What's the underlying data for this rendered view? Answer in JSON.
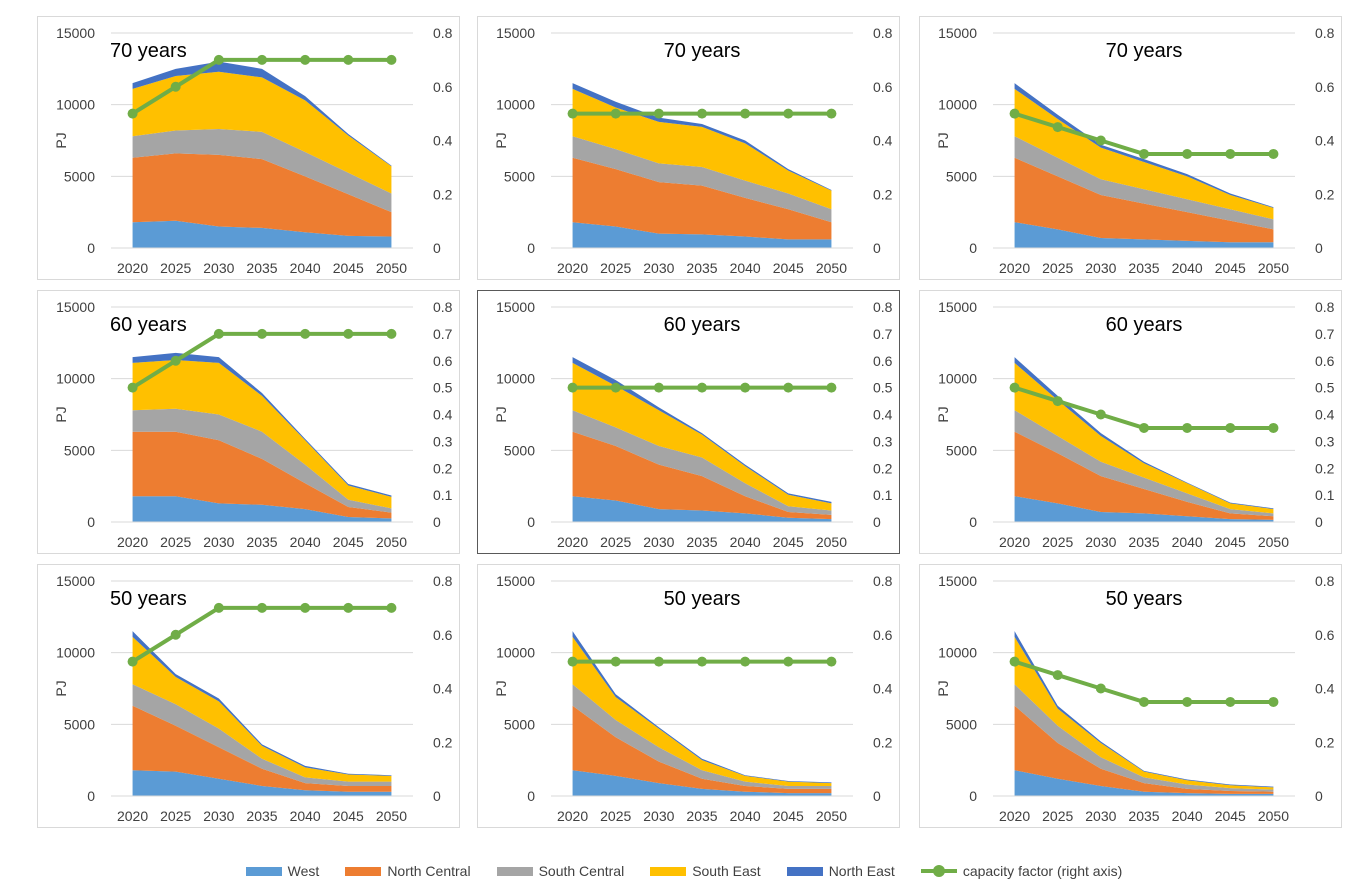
{
  "legend": [
    {
      "label": "West",
      "color": "#5b9bd5",
      "kind": "area"
    },
    {
      "label": "North Central",
      "color": "#ed7d31",
      "kind": "area"
    },
    {
      "label": "South Central",
      "color": "#a5a5a5",
      "kind": "area"
    },
    {
      "label": "South East",
      "color": "#ffc000",
      "kind": "area"
    },
    {
      "label": "North East",
      "color": "#4472c4",
      "kind": "area"
    },
    {
      "label": "capacity factor (right axis)",
      "color": "#70ad47",
      "kind": "line"
    }
  ],
  "chart_data": [
    {
      "type": "area",
      "title": "70 years",
      "title_pos": "left",
      "ylabel": "PJ",
      "x": [
        "2020",
        "2025",
        "2030",
        "2035",
        "2040",
        "2045",
        "2050"
      ],
      "ylim": [
        0,
        15000
      ],
      "yticks": [
        "0",
        "5000",
        "10000",
        "15000"
      ],
      "y2lim": [
        0,
        0.8
      ],
      "y2ticks": [
        "0",
        "0.2",
        "0.4",
        "0.6",
        "0.8"
      ],
      "selected": false,
      "series": [
        {
          "name": "West",
          "values": [
            1800,
            1900,
            1500,
            1400,
            1100,
            850,
            800
          ]
        },
        {
          "name": "North Central",
          "values": [
            4500,
            4700,
            5000,
            4800,
            3900,
            2900,
            1700
          ]
        },
        {
          "name": "South Central",
          "values": [
            1500,
            1600,
            1800,
            1900,
            1700,
            1500,
            1300
          ]
        },
        {
          "name": "South East",
          "values": [
            3300,
            3800,
            4000,
            3800,
            3600,
            2600,
            1900
          ]
        },
        {
          "name": "North East",
          "values": [
            400,
            500,
            700,
            600,
            300,
            100,
            50
          ]
        }
      ],
      "line": {
        "name": "capacity factor (right axis)",
        "values": [
          0.5,
          0.6,
          0.7,
          0.7,
          0.7,
          0.7,
          0.7
        ]
      }
    },
    {
      "type": "area",
      "title": "70 years",
      "title_pos": "center",
      "ylabel": "PJ",
      "x": [
        "2020",
        "2025",
        "2030",
        "2035",
        "2040",
        "2045",
        "2050"
      ],
      "ylim": [
        0,
        15000
      ],
      "yticks": [
        "0",
        "5000",
        "10000",
        "15000"
      ],
      "y2lim": [
        0,
        0.8
      ],
      "y2ticks": [
        "0",
        "0.2",
        "0.4",
        "0.6",
        "0.8"
      ],
      "selected": false,
      "series": [
        {
          "name": "West",
          "values": [
            1800,
            1500,
            1000,
            950,
            800,
            600,
            600
          ]
        },
        {
          "name": "North Central",
          "values": [
            4500,
            4000,
            3600,
            3400,
            2700,
            2100,
            1200
          ]
        },
        {
          "name": "South Central",
          "values": [
            1500,
            1400,
            1300,
            1300,
            1200,
            1100,
            900
          ]
        },
        {
          "name": "South East",
          "values": [
            3300,
            2900,
            2900,
            2800,
            2600,
            1600,
            1300
          ]
        },
        {
          "name": "North East",
          "values": [
            400,
            400,
            300,
            200,
            200,
            100,
            50
          ]
        }
      ],
      "line": {
        "name": "capacity factor (right axis)",
        "values": [
          0.5,
          0.5,
          0.5,
          0.5,
          0.5,
          0.5,
          0.5
        ]
      }
    },
    {
      "type": "area",
      "title": "70 years",
      "title_pos": "center",
      "ylabel": "PJ",
      "x": [
        "2020",
        "2025",
        "2030",
        "2035",
        "2040",
        "2045",
        "2050"
      ],
      "ylim": [
        0,
        15000
      ],
      "yticks": [
        "0",
        "5000",
        "10000",
        "15000"
      ],
      "y2lim": [
        0,
        0.8
      ],
      "y2ticks": [
        "0",
        "0.2",
        "0.4",
        "0.6",
        "0.8"
      ],
      "selected": false,
      "series": [
        {
          "name": "West",
          "values": [
            1800,
            1300,
            700,
            600,
            500,
            400,
            400
          ]
        },
        {
          "name": "North Central",
          "values": [
            4500,
            3700,
            3000,
            2500,
            2000,
            1500,
            900
          ]
        },
        {
          "name": "South Central",
          "values": [
            1500,
            1300,
            1100,
            1000,
            900,
            800,
            700
          ]
        },
        {
          "name": "South East",
          "values": [
            3300,
            2700,
            2200,
            1900,
            1600,
            1000,
            800
          ]
        },
        {
          "name": "North East",
          "values": [
            400,
            300,
            200,
            200,
            150,
            100,
            50
          ]
        }
      ],
      "line": {
        "name": "capacity factor (right axis)",
        "values": [
          0.5,
          0.45,
          0.4,
          0.35,
          0.35,
          0.35,
          0.35
        ]
      }
    },
    {
      "type": "area",
      "title": "60 years",
      "title_pos": "left",
      "ylabel": "PJ",
      "x": [
        "2020",
        "2025",
        "2030",
        "2035",
        "2040",
        "2045",
        "2050"
      ],
      "ylim": [
        0,
        15000
      ],
      "yticks": [
        "0",
        "5000",
        "10000",
        "15000"
      ],
      "y2lim": [
        0,
        0.8
      ],
      "y2ticks": [
        "0",
        "0.1",
        "0.2",
        "0.3",
        "0.4",
        "0.5",
        "0.6",
        "0.7",
        "0.8"
      ],
      "selected": false,
      "series": [
        {
          "name": "West",
          "values": [
            1800,
            1800,
            1300,
            1200,
            900,
            350,
            250
          ]
        },
        {
          "name": "North Central",
          "values": [
            4500,
            4500,
            4400,
            3200,
            1800,
            700,
            400
          ]
        },
        {
          "name": "South Central",
          "values": [
            1500,
            1600,
            1800,
            1900,
            1300,
            500,
            300
          ]
        },
        {
          "name": "South East",
          "values": [
            3300,
            3400,
            3600,
            2500,
            1700,
            1000,
            800
          ]
        },
        {
          "name": "North East",
          "values": [
            400,
            500,
            400,
            200,
            100,
            100,
            100
          ]
        }
      ],
      "line": {
        "name": "capacity factor (right axis)",
        "values": [
          0.5,
          0.6,
          0.7,
          0.7,
          0.7,
          0.7,
          0.7
        ]
      }
    },
    {
      "type": "area",
      "title": "60 years",
      "title_pos": "center",
      "ylabel": "PJ",
      "x": [
        "2020",
        "2025",
        "2030",
        "2035",
        "2040",
        "2045",
        "2050"
      ],
      "ylim": [
        0,
        15000
      ],
      "yticks": [
        "0",
        "5000",
        "10000",
        "15000"
      ],
      "y2lim": [
        0,
        0.8
      ],
      "y2ticks": [
        "0",
        "0.1",
        "0.2",
        "0.3",
        "0.4",
        "0.5",
        "0.6",
        "0.7",
        "0.8"
      ],
      "selected": true,
      "series": [
        {
          "name": "West",
          "values": [
            1800,
            1500,
            900,
            800,
            600,
            300,
            200
          ]
        },
        {
          "name": "North Central",
          "values": [
            4500,
            3800,
            3100,
            2400,
            1200,
            400,
            300
          ]
        },
        {
          "name": "South Central",
          "values": [
            1500,
            1300,
            1300,
            1300,
            900,
            400,
            300
          ]
        },
        {
          "name": "South East",
          "values": [
            3300,
            2900,
            2500,
            1600,
            1200,
            800,
            500
          ]
        },
        {
          "name": "North East",
          "values": [
            400,
            400,
            200,
            100,
            100,
            100,
            100
          ]
        }
      ],
      "line": {
        "name": "capacity factor (right axis)",
        "values": [
          0.5,
          0.5,
          0.5,
          0.5,
          0.5,
          0.5,
          0.5
        ]
      }
    },
    {
      "type": "area",
      "title": "60 years",
      "title_pos": "center",
      "ylabel": "PJ",
      "x": [
        "2020",
        "2025",
        "2030",
        "2035",
        "2040",
        "2045",
        "2050"
      ],
      "ylim": [
        0,
        15000
      ],
      "yticks": [
        "0",
        "5000",
        "10000",
        "15000"
      ],
      "y2lim": [
        0,
        0.8
      ],
      "y2ticks": [
        "0",
        "0.1",
        "0.2",
        "0.3",
        "0.4",
        "0.5",
        "0.6",
        "0.7",
        "0.8"
      ],
      "selected": false,
      "series": [
        {
          "name": "West",
          "values": [
            1800,
            1300,
            700,
            600,
            400,
            200,
            150
          ]
        },
        {
          "name": "North Central",
          "values": [
            4500,
            3500,
            2500,
            1700,
            1000,
            400,
            250
          ]
        },
        {
          "name": "South Central",
          "values": [
            1500,
            1200,
            1000,
            800,
            600,
            300,
            200
          ]
        },
        {
          "name": "South East",
          "values": [
            3300,
            2500,
            1800,
            1000,
            700,
            400,
            300
          ]
        },
        {
          "name": "North East",
          "values": [
            400,
            300,
            200,
            100,
            50,
            50,
            50
          ]
        }
      ],
      "line": {
        "name": "capacity factor (right axis)",
        "values": [
          0.5,
          0.45,
          0.4,
          0.35,
          0.35,
          0.35,
          0.35
        ]
      }
    },
    {
      "type": "area",
      "title": "50 years",
      "title_pos": "left",
      "ylabel": "PJ",
      "x": [
        "2020",
        "2025",
        "2030",
        "2035",
        "2040",
        "2045",
        "2050"
      ],
      "ylim": [
        0,
        15000
      ],
      "yticks": [
        "0",
        "5000",
        "10000",
        "15000"
      ],
      "y2lim": [
        0,
        0.8
      ],
      "y2ticks": [
        "0",
        "0.2",
        "0.4",
        "0.6",
        "0.8"
      ],
      "selected": false,
      "series": [
        {
          "name": "West",
          "values": [
            1800,
            1700,
            1200,
            700,
            400,
            300,
            300
          ]
        },
        {
          "name": "North Central",
          "values": [
            4500,
            3200,
            2200,
            1200,
            500,
            400,
            400
          ]
        },
        {
          "name": "South Central",
          "values": [
            1500,
            1500,
            1300,
            700,
            400,
            300,
            300
          ]
        },
        {
          "name": "South East",
          "values": [
            3300,
            1900,
            1900,
            900,
            700,
            500,
            400
          ]
        },
        {
          "name": "North East",
          "values": [
            400,
            200,
            200,
            100,
            100,
            50,
            50
          ]
        }
      ],
      "line": {
        "name": "capacity factor (right axis)",
        "values": [
          0.5,
          0.6,
          0.7,
          0.7,
          0.7,
          0.7,
          0.7
        ]
      }
    },
    {
      "type": "area",
      "title": "50 years",
      "title_pos": "center",
      "ylabel": "PJ",
      "x": [
        "2020",
        "2025",
        "2030",
        "2035",
        "2040",
        "2045",
        "2050"
      ],
      "ylim": [
        0,
        15000
      ],
      "yticks": [
        "0",
        "5000",
        "10000",
        "15000"
      ],
      "y2lim": [
        0,
        0.8
      ],
      "y2ticks": [
        "0",
        "0.2",
        "0.4",
        "0.6",
        "0.8"
      ],
      "selected": false,
      "series": [
        {
          "name": "West",
          "values": [
            1800,
            1400,
            900,
            500,
            300,
            200,
            200
          ]
        },
        {
          "name": "North Central",
          "values": [
            4500,
            2700,
            1500,
            700,
            400,
            300,
            300
          ]
        },
        {
          "name": "South Central",
          "values": [
            1500,
            1200,
            1000,
            600,
            300,
            200,
            200
          ]
        },
        {
          "name": "South East",
          "values": [
            3300,
            1600,
            1300,
            700,
            400,
            300,
            200
          ]
        },
        {
          "name": "North East",
          "values": [
            400,
            200,
            100,
            100,
            50,
            50,
            50
          ]
        }
      ],
      "line": {
        "name": "capacity factor (right axis)",
        "values": [
          0.5,
          0.5,
          0.5,
          0.5,
          0.5,
          0.5,
          0.5
        ]
      }
    },
    {
      "type": "area",
      "title": "50 years",
      "title_pos": "center",
      "ylabel": "PJ",
      "x": [
        "2020",
        "2025",
        "2030",
        "2035",
        "2040",
        "2045",
        "2050"
      ],
      "ylim": [
        0,
        15000
      ],
      "yticks": [
        "0",
        "5000",
        "10000",
        "15000"
      ],
      "y2lim": [
        0,
        0.8
      ],
      "y2ticks": [
        "0",
        "0.2",
        "0.4",
        "0.6",
        "0.8"
      ],
      "selected": false,
      "series": [
        {
          "name": "West",
          "values": [
            1800,
            1200,
            700,
            300,
            200,
            150,
            150
          ]
        },
        {
          "name": "North Central",
          "values": [
            4500,
            2500,
            1200,
            600,
            300,
            200,
            150
          ]
        },
        {
          "name": "South Central",
          "values": [
            1500,
            1200,
            800,
            400,
            300,
            200,
            150
          ]
        },
        {
          "name": "South East",
          "values": [
            3300,
            1200,
            1000,
            400,
            300,
            200,
            150
          ]
        },
        {
          "name": "North East",
          "values": [
            400,
            200,
            100,
            50,
            50,
            50,
            50
          ]
        }
      ],
      "line": {
        "name": "capacity factor (right axis)",
        "values": [
          0.5,
          0.45,
          0.4,
          0.35,
          0.35,
          0.35,
          0.35
        ]
      }
    }
  ]
}
